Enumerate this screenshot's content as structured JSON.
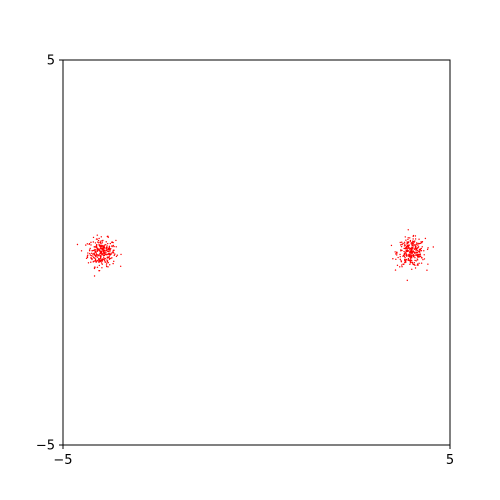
{
  "chart_data": {
    "type": "scatter",
    "title": "",
    "xlabel": "",
    "ylabel": "",
    "xlim": [
      -5,
      5
    ],
    "ylim": [
      -5,
      5
    ],
    "x_ticks": [
      -5,
      5
    ],
    "y_ticks": [
      -5,
      5
    ],
    "x_tick_labels": [
      "−5",
      "5"
    ],
    "y_tick_labels": [
      "−5",
      "5"
    ],
    "grid": false,
    "legend": "none",
    "marker_color": "#ff0000",
    "clusters": [
      {
        "center": [
          -4.0,
          0.0
        ],
        "spread": 0.18,
        "points": 300
      },
      {
        "center": [
          4.0,
          0.0
        ],
        "spread": 0.18,
        "points": 300
      }
    ]
  }
}
